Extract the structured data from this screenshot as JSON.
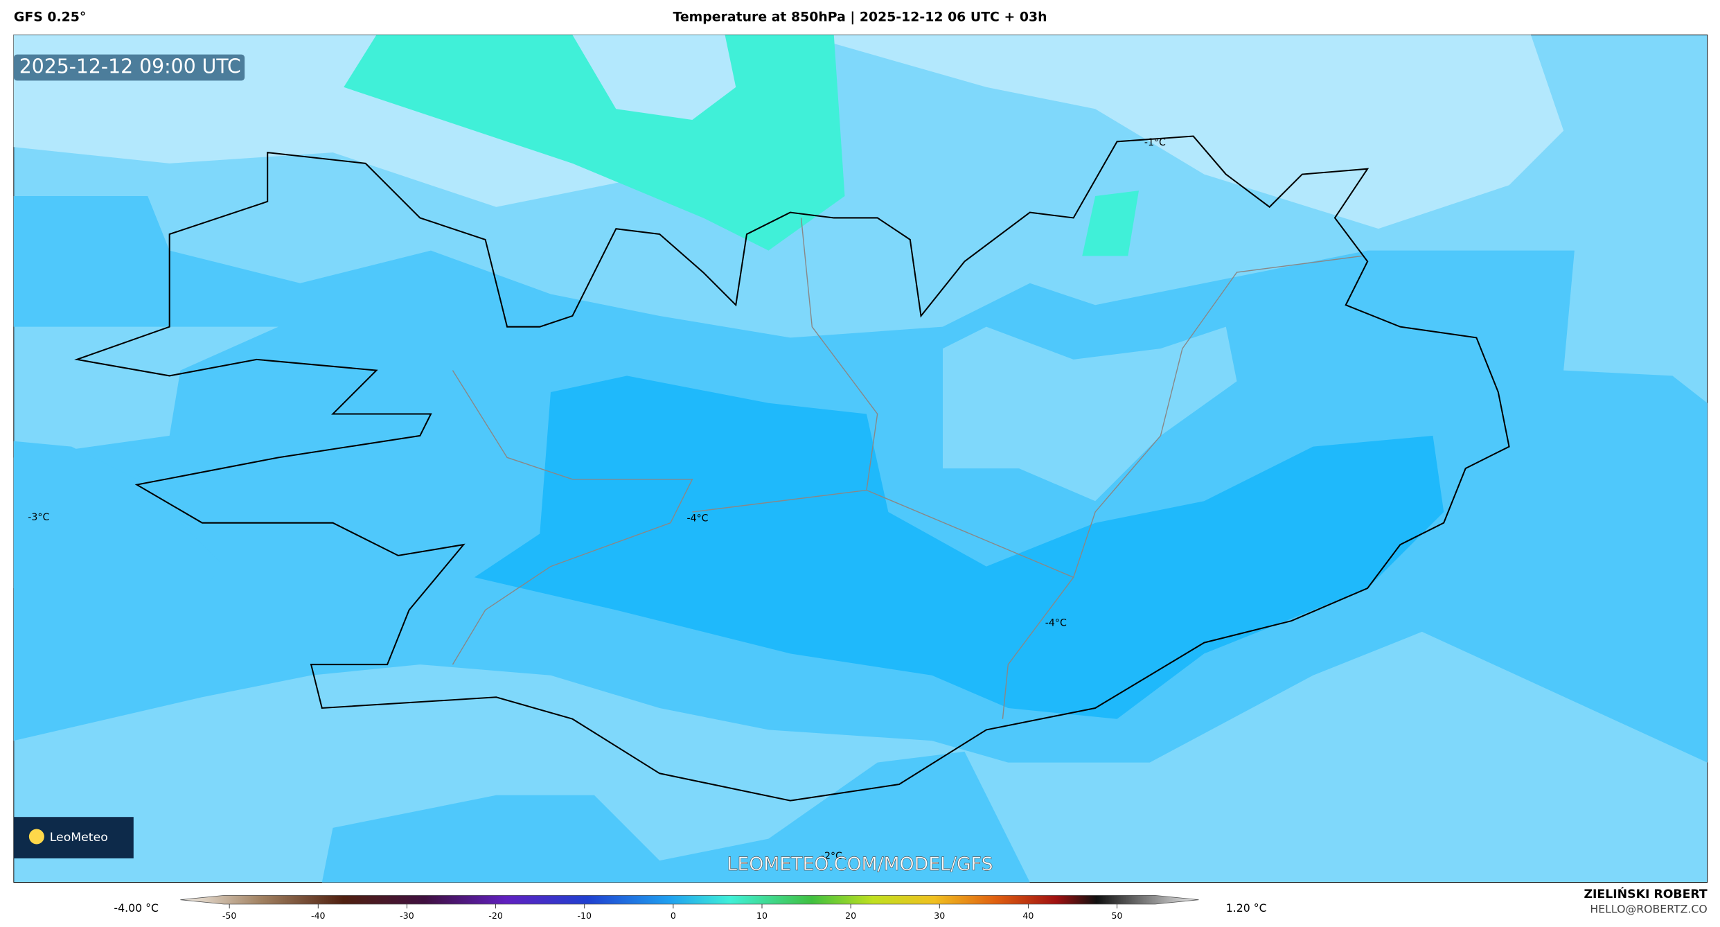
{
  "header": {
    "model": "GFS 0.25°",
    "title": "Temperature at 850hPa | 2025-12-12 06 UTC + 03h"
  },
  "map": {
    "timestamp": "2025-12-12 09:00 UTC",
    "contour_labels": [
      "-3°C",
      "-4°C",
      "-4°C",
      "-1°C",
      "-2°C"
    ],
    "watermark": "LEOMETEO.COM/MODEL/GFS",
    "logo": "LeoMeteo"
  },
  "colorbar": {
    "min_label": "-4.00 °C",
    "max_label": "1.20 °C",
    "ticks": [
      -50,
      -40,
      -30,
      -20,
      -10,
      0,
      10,
      20,
      30,
      40,
      50
    ]
  },
  "footer": {
    "author": "ZIELIŃSKI ROBERT",
    "email": "HELLO@ROBERTZ.CO"
  }
}
